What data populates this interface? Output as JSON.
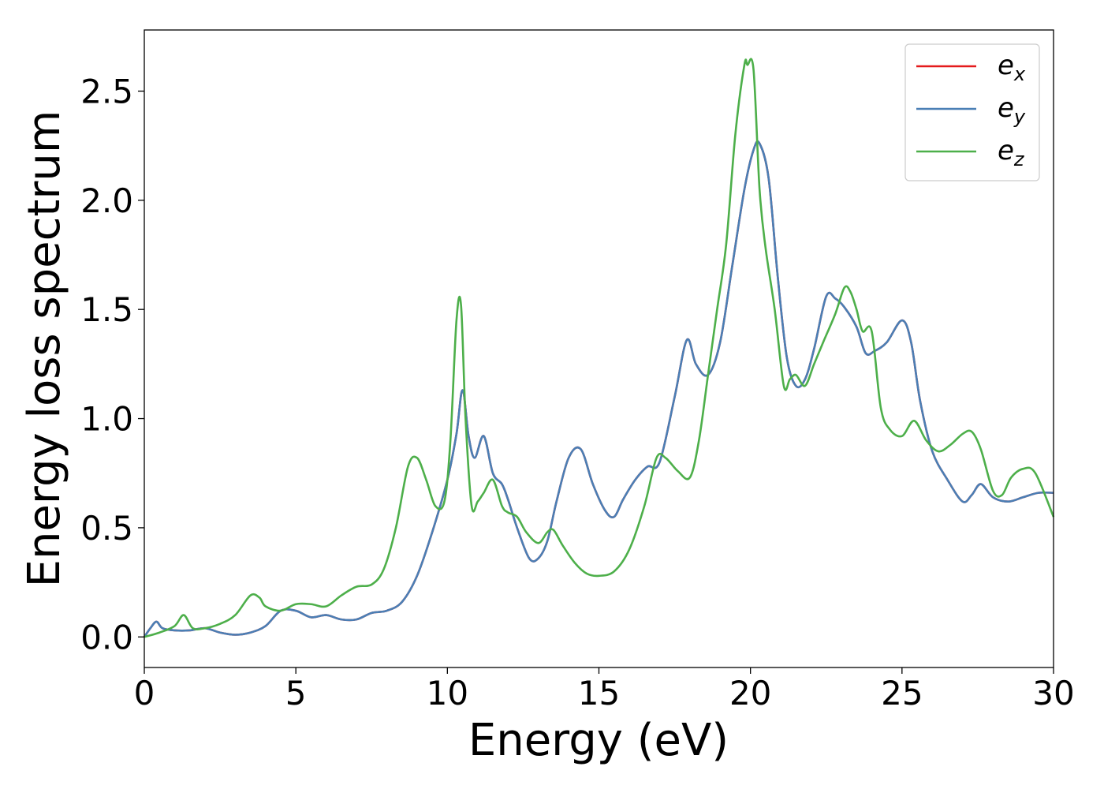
{
  "chart_data": {
    "type": "line",
    "xlabel": "Energy (eV)",
    "ylabel": "Energy loss spectrum",
    "xlim": [
      0,
      30
    ],
    "ylim": [
      -0.14,
      2.78
    ],
    "xticks": [
      0,
      5,
      10,
      15,
      20,
      25,
      30
    ],
    "xtick_labels": [
      "0",
      "5",
      "10",
      "15",
      "20",
      "25",
      "30"
    ],
    "yticks": [
      0.0,
      0.5,
      1.0,
      1.5,
      2.0,
      2.5
    ],
    "ytick_labels": [
      "0.0",
      "0.5",
      "1.0",
      "1.5",
      "2.0",
      "2.5"
    ],
    "grid": false,
    "legend_position": "top-right",
    "series": [
      {
        "name": "e",
        "subscript": "x",
        "color": "#e41a1c",
        "x": [
          0,
          0.2,
          0.4,
          0.6,
          1,
          1.5,
          2,
          2.5,
          3,
          3.5,
          4,
          4.5,
          5,
          5.5,
          6,
          6.5,
          7,
          7.5,
          8,
          8.5,
          9,
          9.5,
          10,
          10.3,
          10.5,
          10.7,
          10.9,
          11.2,
          11.5,
          11.8,
          12,
          12.3,
          12.7,
          13,
          13.3,
          13.6,
          14,
          14.4,
          14.8,
          15.2,
          15.5,
          15.8,
          16.2,
          16.6,
          17,
          17.5,
          17.9,
          18.2,
          18.6,
          19,
          19.4,
          19.8,
          20.1,
          20.3,
          20.6,
          20.9,
          21.2,
          21.5,
          21.8,
          22.1,
          22.5,
          22.8,
          23.1,
          23.5,
          23.8,
          24.1,
          24.5,
          25,
          25.3,
          25.6,
          26,
          26.5,
          27,
          27.3,
          27.6,
          28,
          28.5,
          29,
          29.5,
          30
        ],
        "y": [
          0.0,
          0.04,
          0.07,
          0.04,
          0.03,
          0.03,
          0.04,
          0.02,
          0.01,
          0.02,
          0.05,
          0.12,
          0.12,
          0.09,
          0.1,
          0.08,
          0.08,
          0.11,
          0.12,
          0.16,
          0.28,
          0.48,
          0.72,
          0.93,
          1.13,
          0.92,
          0.82,
          0.92,
          0.75,
          0.7,
          0.63,
          0.5,
          0.36,
          0.36,
          0.44,
          0.62,
          0.82,
          0.86,
          0.7,
          0.58,
          0.55,
          0.63,
          0.72,
          0.78,
          0.8,
          1.1,
          1.36,
          1.25,
          1.2,
          1.35,
          1.7,
          2.05,
          2.23,
          2.26,
          2.1,
          1.65,
          1.28,
          1.15,
          1.18,
          1.32,
          1.56,
          1.55,
          1.51,
          1.42,
          1.3,
          1.31,
          1.35,
          1.45,
          1.35,
          1.08,
          0.85,
          0.72,
          0.62,
          0.65,
          0.7,
          0.64,
          0.62,
          0.64,
          0.66,
          0.66
        ]
      },
      {
        "name": "e",
        "subscript": "y",
        "color": "#4a7fb5",
        "x": [
          0,
          0.2,
          0.4,
          0.6,
          1,
          1.5,
          2,
          2.5,
          3,
          3.5,
          4,
          4.5,
          5,
          5.5,
          6,
          6.5,
          7,
          7.5,
          8,
          8.5,
          9,
          9.5,
          10,
          10.3,
          10.5,
          10.7,
          10.9,
          11.2,
          11.5,
          11.8,
          12,
          12.3,
          12.7,
          13,
          13.3,
          13.6,
          14,
          14.4,
          14.8,
          15.2,
          15.5,
          15.8,
          16.2,
          16.6,
          17,
          17.5,
          17.9,
          18.2,
          18.6,
          19,
          19.4,
          19.8,
          20.1,
          20.3,
          20.6,
          20.9,
          21.2,
          21.5,
          21.8,
          22.1,
          22.5,
          22.8,
          23.1,
          23.5,
          23.8,
          24.1,
          24.5,
          25,
          25.3,
          25.6,
          26,
          26.5,
          27,
          27.3,
          27.6,
          28,
          28.5,
          29,
          29.5,
          30
        ],
        "y": [
          0.0,
          0.04,
          0.07,
          0.04,
          0.03,
          0.03,
          0.04,
          0.02,
          0.01,
          0.02,
          0.05,
          0.12,
          0.12,
          0.09,
          0.1,
          0.08,
          0.08,
          0.11,
          0.12,
          0.16,
          0.28,
          0.48,
          0.72,
          0.93,
          1.13,
          0.92,
          0.82,
          0.92,
          0.75,
          0.7,
          0.63,
          0.5,
          0.36,
          0.36,
          0.44,
          0.62,
          0.82,
          0.86,
          0.7,
          0.58,
          0.55,
          0.63,
          0.72,
          0.78,
          0.8,
          1.1,
          1.36,
          1.25,
          1.2,
          1.35,
          1.7,
          2.05,
          2.23,
          2.26,
          2.1,
          1.65,
          1.28,
          1.15,
          1.18,
          1.32,
          1.56,
          1.55,
          1.51,
          1.42,
          1.3,
          1.31,
          1.35,
          1.45,
          1.35,
          1.08,
          0.85,
          0.72,
          0.62,
          0.65,
          0.7,
          0.64,
          0.62,
          0.64,
          0.66,
          0.66
        ]
      },
      {
        "name": "e",
        "subscript": "z",
        "color": "#4daf4a",
        "x": [
          0,
          0.5,
          1,
          1.3,
          1.6,
          2,
          2.5,
          3,
          3.5,
          3.8,
          4,
          4.5,
          5,
          5.5,
          6,
          6.5,
          7,
          7.5,
          7.9,
          8.3,
          8.7,
          9,
          9.3,
          9.6,
          9.9,
          10.1,
          10.3,
          10.45,
          10.6,
          10.8,
          11,
          11.2,
          11.5,
          11.8,
          12,
          12.3,
          12.6,
          13,
          13.3,
          13.5,
          13.8,
          14.2,
          14.6,
          15,
          15.5,
          16,
          16.5,
          16.9,
          17.2,
          17.6,
          18,
          18.3,
          18.6,
          18.9,
          19.2,
          19.5,
          19.8,
          19.9,
          20.1,
          20.3,
          20.5,
          20.8,
          21.1,
          21.3,
          21.5,
          21.8,
          22.1,
          22.4,
          22.8,
          23.1,
          23.3,
          23.5,
          23.7,
          24,
          24.3,
          24.6,
          25,
          25.4,
          25.8,
          26.2,
          26.6,
          27,
          27.3,
          27.6,
          28,
          28.3,
          28.6,
          29,
          29.4,
          30
        ],
        "y": [
          0.0,
          0.02,
          0.05,
          0.1,
          0.04,
          0.04,
          0.06,
          0.1,
          0.19,
          0.18,
          0.14,
          0.12,
          0.15,
          0.15,
          0.14,
          0.19,
          0.23,
          0.24,
          0.31,
          0.5,
          0.78,
          0.82,
          0.72,
          0.6,
          0.62,
          0.9,
          1.45,
          1.52,
          1.0,
          0.6,
          0.62,
          0.66,
          0.72,
          0.6,
          0.57,
          0.55,
          0.48,
          0.43,
          0.48,
          0.49,
          0.42,
          0.34,
          0.29,
          0.28,
          0.3,
          0.4,
          0.6,
          0.82,
          0.82,
          0.76,
          0.73,
          0.9,
          1.2,
          1.5,
          1.8,
          2.3,
          2.62,
          2.62,
          2.6,
          2.05,
          1.78,
          1.5,
          1.15,
          1.18,
          1.2,
          1.15,
          1.25,
          1.35,
          1.48,
          1.6,
          1.58,
          1.5,
          1.4,
          1.4,
          1.05,
          0.95,
          0.92,
          0.99,
          0.9,
          0.85,
          0.88,
          0.93,
          0.94,
          0.86,
          0.67,
          0.65,
          0.73,
          0.77,
          0.75,
          0.55
        ]
      }
    ]
  }
}
